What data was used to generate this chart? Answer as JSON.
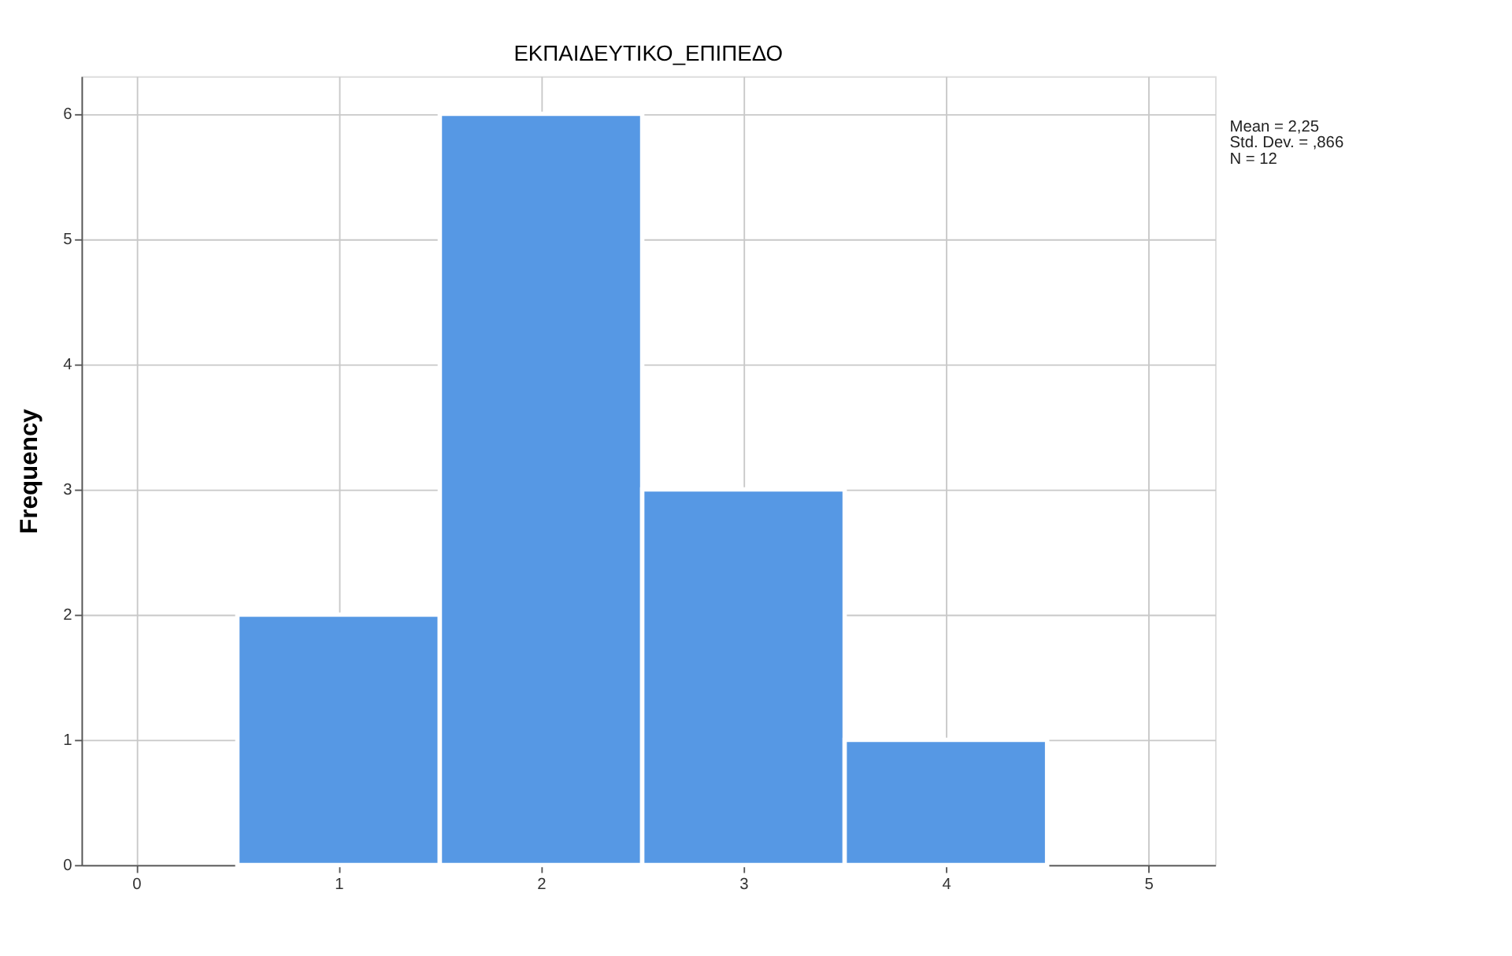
{
  "chart_data": {
    "type": "histogram",
    "title": "ΕΚΠΑΙΔΕΥΤΙΚΟ_ΕΠΙΠΕΔΟ",
    "ylabel": "Frequency",
    "bins": [
      0.5,
      1.5,
      2.5,
      3.5,
      4.5
    ],
    "values": [
      2,
      6,
      3,
      1
    ],
    "color": "#5698e4",
    "xlim": [
      -0.27,
      5.33
    ],
    "xticks": [
      0,
      1,
      2,
      3,
      4,
      5
    ],
    "ylim": [
      0,
      6.3
    ],
    "yticks": [
      0,
      1,
      2,
      3,
      4,
      5,
      6
    ],
    "grid": true,
    "annotations": [
      "Mean = 2,25",
      "Std. Dev. = ,866",
      "N = 12"
    ]
  }
}
